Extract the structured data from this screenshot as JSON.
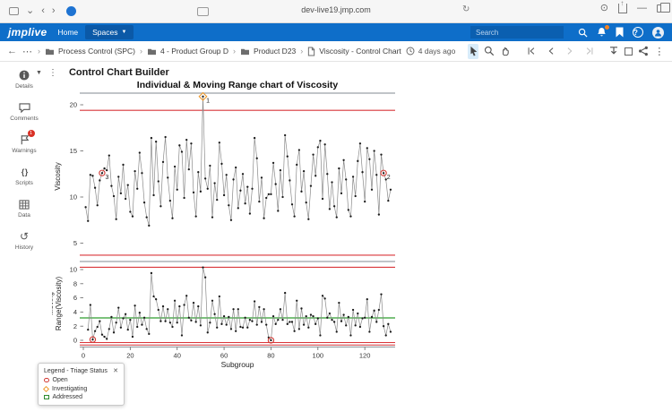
{
  "browser": {
    "url": "dev-live19.jmp.com"
  },
  "icons": {
    "tab_menu": "⌄",
    "back": "‹",
    "forward": "›",
    "reload": "↻",
    "reader": "⊙",
    "minimize": "—",
    "breadcrumb_back": "←",
    "breadcrumb_overflow": "⋯",
    "separator": "›",
    "kebab": "⋮",
    "caret": "▾",
    "scripts": "{ }",
    "history": "↺",
    "help": "?",
    "close": "✕"
  },
  "header": {
    "logo": "jmplive",
    "home": "Home",
    "spaces": "Spaces",
    "search_placeholder": "Search"
  },
  "toolbar": {
    "breadcrumbs": [
      {
        "label": "Process Control (SPC)"
      },
      {
        "label": "4 - Product Group D"
      },
      {
        "label": "Product D23"
      },
      {
        "label": "Viscosity - Control Chart"
      }
    ],
    "timestamp": "4 days ago"
  },
  "sidebar": {
    "items": [
      {
        "label": "Details"
      },
      {
        "label": "Comments"
      },
      {
        "label": "Warnings",
        "badge": "1"
      },
      {
        "label": "Scripts"
      },
      {
        "label": "Data"
      },
      {
        "label": "History"
      }
    ]
  },
  "report": {
    "title": "Control Chart Builder"
  },
  "chart_data": {
    "type": "line",
    "title": "Individual & Moving Range chart of Viscosity",
    "xlabel": "Subgroup",
    "x_ticks": [
      0,
      20,
      40,
      60,
      80,
      100,
      120
    ],
    "subgroup_start": 1,
    "values": [
      8.9,
      7.4,
      12.4,
      12.3,
      11.0,
      9.1,
      11.8,
      12.6,
      13.1,
      12.9,
      14.5,
      11.2,
      10.1,
      7.6,
      12.2,
      10.4,
      13.5,
      9.8,
      11.3,
      8.4,
      7.9,
      12.8,
      10.9,
      14.8,
      12.6,
      9.4,
      7.8,
      6.9,
      16.4,
      10.2,
      16.0,
      11.7,
      9.0,
      13.8,
      16.5,
      12.1,
      9.6,
      7.7,
      13.3,
      10.8,
      15.6,
      14.9,
      9.9,
      16.2,
      13.0,
      15.8,
      10.5,
      7.9,
      12.7,
      10.6,
      20.9,
      12.0,
      10.9,
      13.4,
      7.8,
      11.5,
      9.7,
      15.9,
      13.6,
      10.2,
      12.4,
      9.1,
      7.5,
      11.9,
      13.2,
      8.8,
      10.7,
      12.5,
      9.3,
      11.1,
      8.2,
      10.9,
      16.4,
      14.2,
      9.5,
      12.1,
      7.7,
      9.9,
      10.3,
      10.3,
      13.7,
      11.4,
      8.5,
      12.9,
      10.0,
      16.7,
      14.4,
      11.8,
      9.2,
      7.9,
      13.5,
      15.1,
      10.6,
      12.8,
      9.4,
      7.6,
      11.2,
      14.6,
      12.3,
      15.4,
      16.1,
      9.8,
      15.7,
      12.5,
      8.7,
      11.6,
      9.0,
      7.8,
      13.1,
      10.4,
      14.0,
      11.9,
      8.6,
      7.9,
      12.2,
      10.1,
      13.9,
      15.8,
      12.7,
      9.5,
      15.3,
      14.1,
      10.8,
      15.0,
      12.4,
      8.1,
      14.6,
      12.6,
      11.9,
      9.6,
      10.8
    ],
    "panels": [
      {
        "name": "individuals",
        "ylabel": "Viscosity",
        "yticks": [
          5,
          10,
          15,
          20
        ],
        "ylim": [
          3.0,
          21.3
        ],
        "ucl": 19.4,
        "lcl": 3.7
      },
      {
        "name": "moving_range",
        "ylabel_lines": [
          "Moving",
          "Range(Viscosity)"
        ],
        "yticks": [
          0,
          2,
          4,
          6,
          8,
          10
        ],
        "ylim": [
          -0.9,
          11.1
        ],
        "ucl": 10.33,
        "center": 3.16,
        "lcl": 0
      }
    ],
    "markers": [
      {
        "panel": "individuals",
        "subgroup": 8,
        "status": "Open",
        "label": "3"
      },
      {
        "panel": "individuals",
        "subgroup": 51,
        "status": "Investigating",
        "label": "1"
      },
      {
        "panel": "individuals",
        "subgroup": 128,
        "status": "Open",
        "label": "2"
      },
      {
        "panel": "moving_range",
        "subgroup": 4,
        "status": "Open",
        "label": ""
      },
      {
        "panel": "moving_range",
        "subgroup": 80,
        "status": "Open",
        "label": ""
      }
    ],
    "limit_color": "#d9363a",
    "center_color": "#2e9e2e",
    "frame_color": "#9aa0a6",
    "point_color": "#1b1b1b"
  },
  "legend": {
    "title": "Legend - Triage Status",
    "items": [
      {
        "label": "Open",
        "color": "#d23a35",
        "shape": "circle"
      },
      {
        "label": "Investigating",
        "color": "#ef9a2c",
        "shape": "diamond"
      },
      {
        "label": "Addressed",
        "color": "#2e8b2e",
        "shape": "square"
      }
    ]
  }
}
